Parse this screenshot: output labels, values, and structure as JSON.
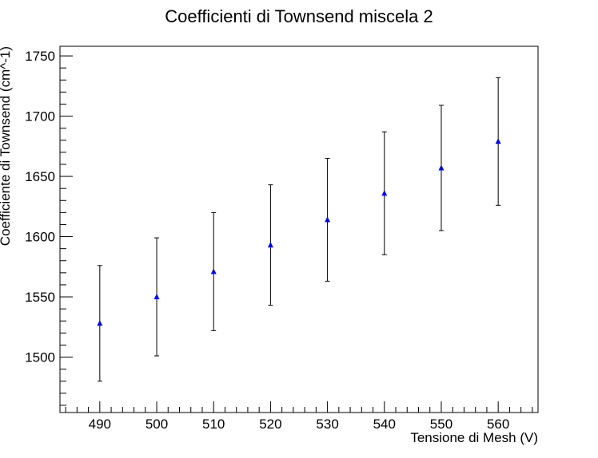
{
  "chart_data": {
    "type": "scatter",
    "title": "Coefficienti di Townsend miscela 2",
    "xlabel": "Tensione di Mesh (V)",
    "ylabel": "Coefficiente di Townsend (cm^-1)",
    "xlim": [
      483,
      567
    ],
    "ylim": [
      1454,
      1758
    ],
    "x_ticks": [
      490,
      500,
      510,
      520,
      530,
      540,
      550,
      560
    ],
    "y_ticks": [
      1500,
      1550,
      1600,
      1650,
      1700,
      1750
    ],
    "grid": false,
    "marker": "triangle",
    "colors": {
      "marker": "#0000ff",
      "error_bar": "#000000",
      "axis": "#000000"
    },
    "series": [
      {
        "x": [
          490,
          500,
          510,
          520,
          530,
          540,
          550,
          560
        ],
        "y": [
          1528,
          1550,
          1571,
          1593,
          1614,
          1636,
          1657,
          1679
        ],
        "yerr": [
          48,
          49,
          49,
          50,
          51,
          51,
          52,
          53
        ]
      }
    ]
  }
}
